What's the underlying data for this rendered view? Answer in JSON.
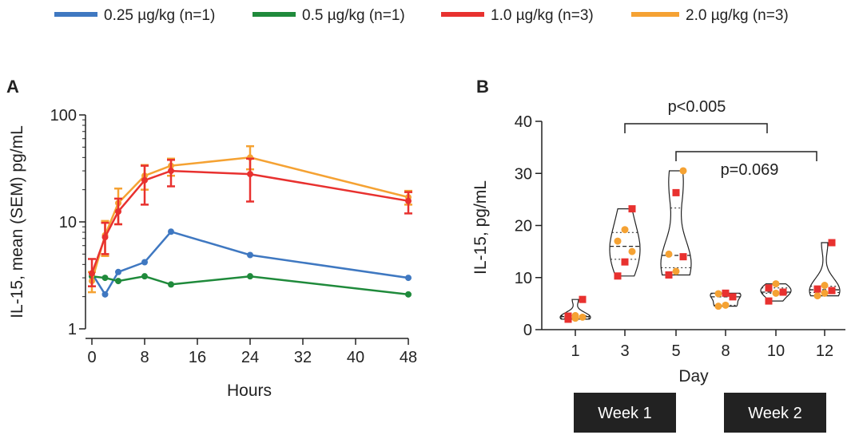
{
  "legend": [
    {
      "label": "0.25 µg/kg (n=1)",
      "color": "#3f78c1"
    },
    {
      "label": "0.5 µg/kg (n=1)",
      "color": "#1f8a3b"
    },
    {
      "label": "1.0 µg/kg (n=3)",
      "color": "#e8312f"
    },
    {
      "label": "2.0 µg/kg (n=3)",
      "color": "#f5a233"
    }
  ],
  "chart_data": [
    {
      "panel": "A",
      "type": "line",
      "title": "",
      "xlabel": "Hours",
      "ylabel": "IL-15, mean (SEM) pg/mL",
      "yscale": "log",
      "ylim": [
        1,
        100
      ],
      "xlim": [
        0,
        48
      ],
      "x_ticks": [
        0,
        8,
        16,
        24,
        32,
        40,
        48
      ],
      "y_ticks": [
        1,
        10,
        100
      ],
      "series": [
        {
          "name": "0.25 µg/kg (n=1)",
          "color": "#3f78c1",
          "x": [
            0,
            2,
            4,
            8,
            12,
            24,
            48
          ],
          "values": [
            3.3,
            2.1,
            3.4,
            4.2,
            8.1,
            4.9,
            3.0
          ]
        },
        {
          "name": "0.5 µg/kg (n=1)",
          "color": "#1f8a3b",
          "x": [
            0,
            2,
            4,
            8,
            12,
            24,
            48
          ],
          "values": [
            3.1,
            3.0,
            2.8,
            3.1,
            2.6,
            3.1,
            2.1
          ]
        },
        {
          "name": "1.0 µg/kg (n=3)",
          "color": "#e8312f",
          "x": [
            0,
            2,
            4,
            8,
            12,
            24,
            48
          ],
          "values": [
            3.3,
            7.2,
            12.5,
            24.5,
            30,
            28,
            15.7
          ],
          "err_low": [
            2.5,
            5.0,
            9.5,
            14.5,
            21.5,
            15.5,
            12.0
          ],
          "err_high": [
            4.5,
            9.8,
            16.5,
            33.5,
            38.0,
            39.0,
            19.0
          ]
        },
        {
          "name": "2.0 µg/kg (n=3)",
          "color": "#f5a233",
          "x": [
            0,
            2,
            4,
            8,
            12,
            24,
            48
          ],
          "values": [
            2.8,
            7.5,
            15.0,
            27.0,
            33.5,
            40.0,
            17.0
          ],
          "err_low": [
            2.2,
            4.8,
            9.5,
            20.0,
            27.0,
            31.0,
            14.5
          ],
          "err_high": [
            3.4,
            10.2,
            20.5,
            34.0,
            39.0,
            51.0,
            19.5
          ]
        }
      ]
    },
    {
      "panel": "B",
      "type": "violin",
      "title": "",
      "xlabel": "Day",
      "ylabel": "IL-15, pg/mL",
      "ylim": [
        0,
        40
      ],
      "y_ticks": [
        0,
        10,
        20,
        30,
        40
      ],
      "categories": [
        "1",
        "3",
        "5",
        "8",
        "10",
        "12"
      ],
      "groups": [
        "Week 1",
        "Week 2"
      ],
      "annotations": [
        "p<0.005",
        "p=0.069"
      ],
      "points": [
        {
          "day": "1",
          "red": [
            2.0,
            2.6,
            5.8
          ],
          "orange": [
            2.2,
            2.7,
            2.4
          ]
        },
        {
          "day": "3",
          "red": [
            10.3,
            13.0,
            23.2
          ],
          "orange": [
            15.0,
            17.0,
            19.2
          ]
        },
        {
          "day": "5",
          "red": [
            10.5,
            14.0,
            26.3
          ],
          "orange": [
            11.2,
            14.5,
            30.5
          ]
        },
        {
          "day": "8",
          "red": [
            6.3,
            7.0
          ],
          "orange": [
            4.5,
            4.7,
            6.9
          ]
        },
        {
          "day": "10",
          "red": [
            5.5,
            7.2,
            8.0
          ],
          "orange": [
            7.0,
            8.8
          ]
        },
        {
          "day": "12",
          "red": [
            7.5,
            7.8,
            16.7
          ],
          "orange": [
            6.5,
            7.0,
            8.5
          ]
        }
      ]
    }
  ]
}
